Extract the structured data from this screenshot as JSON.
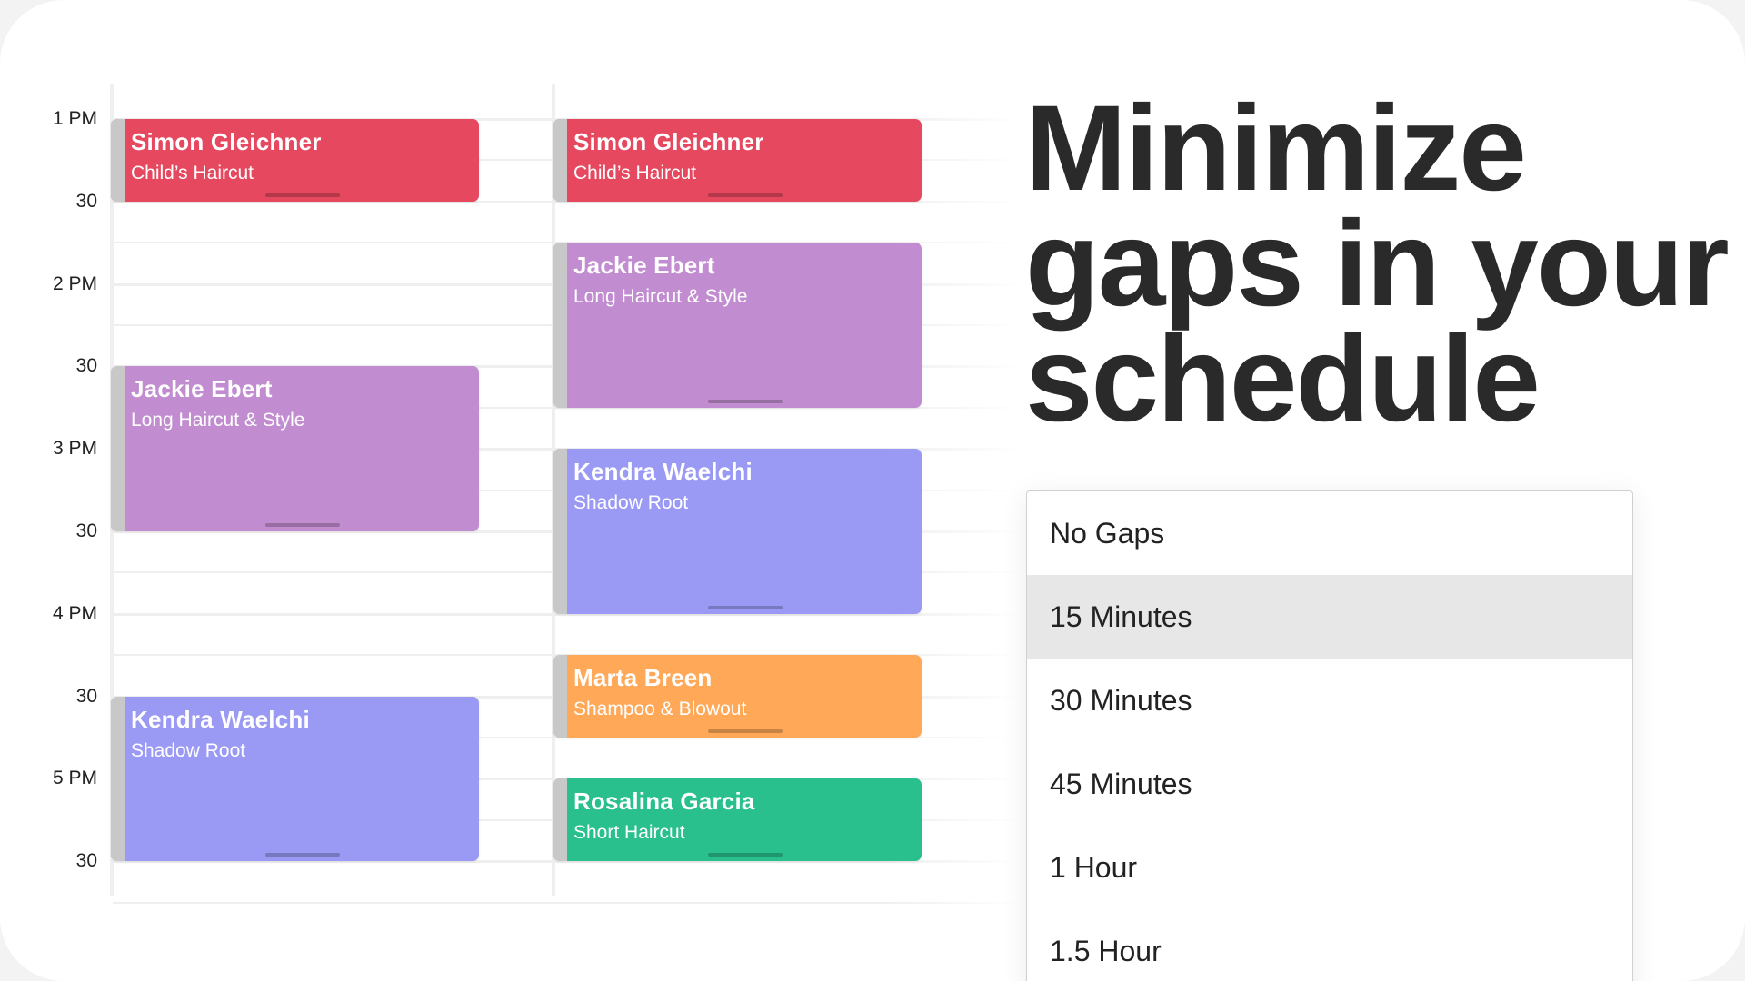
{
  "time_labels": [
    "1 PM",
    "30",
    "2 PM",
    "30",
    "3 PM",
    "30",
    "4 PM",
    "30",
    "5 PM",
    "30"
  ],
  "colors": {
    "red": "#e5485f",
    "purple": "#c18dd0",
    "blue": "#9a9af5",
    "orange": "#fea858",
    "green": "#29c08e",
    "strip": "#c8c8c8"
  },
  "columns": [
    {
      "events": [
        {
          "name": "Simon Gleichner",
          "service": "Child’s Haircut",
          "start": "1:00 PM",
          "end": "1:30 PM",
          "color": "#e5485f"
        },
        {
          "name": "Jackie Ebert",
          "service": "Long Haircut & Style",
          "start": "2:30 PM",
          "end": "3:30 PM",
          "color": "#c18dd0"
        },
        {
          "name": "Kendra Waelchi",
          "service": "Shadow Root",
          "start": "4:30 PM",
          "end": "5:30 PM",
          "color": "#9a9af5"
        }
      ]
    },
    {
      "events": [
        {
          "name": "Simon Gleichner",
          "service": "Child’s Haircut",
          "start": "1:00 PM",
          "end": "1:30 PM",
          "color": "#e5485f"
        },
        {
          "name": "Jackie Ebert",
          "service": "Long Haircut & Style",
          "start": "1:45 PM",
          "end": "2:45 PM",
          "color": "#c18dd0"
        },
        {
          "name": "Kendra Waelchi",
          "service": "Shadow Root",
          "start": "3:00 PM",
          "end": "4:00 PM",
          "color": "#9a9af5"
        },
        {
          "name": "Marta Breen",
          "service": "Shampoo & Blowout",
          "start": "4:15 PM",
          "end": "4:45 PM",
          "color": "#fea858"
        },
        {
          "name": "Rosalina Garcia",
          "service": "Short Haircut",
          "start": "5:00 PM",
          "end": "5:30 PM",
          "color": "#29c08e"
        }
      ]
    }
  ],
  "headline": [
    "Minimize",
    "gaps in your",
    "schedule"
  ],
  "gap_options": {
    "selected": "15 Minutes",
    "items": [
      "No Gaps",
      "15 Minutes",
      "30 Minutes",
      "45 Minutes",
      "1 Hour",
      "1.5 Hour"
    ]
  }
}
